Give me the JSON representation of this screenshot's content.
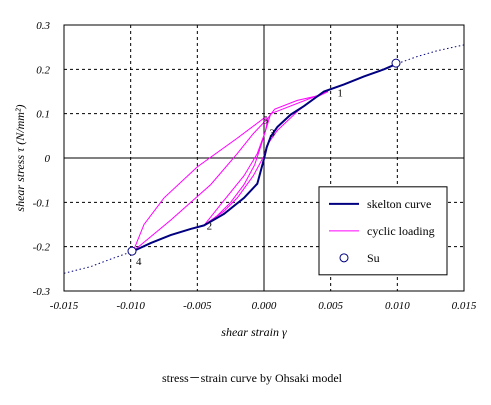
{
  "chart_data": {
    "type": "line",
    "caption": "stress－strain curve by Ohsaki model",
    "xlabel": "shear strain γ",
    "ylabel": "shear stress τ (N/mm²)",
    "xlim": [
      -0.015,
      0.015
    ],
    "ylim": [
      -0.3,
      0.3
    ],
    "x_ticks": [
      -0.015,
      -0.01,
      -0.005,
      0.0,
      0.005,
      0.01,
      0.015
    ],
    "x_tick_labels": [
      "-0.015",
      "-0.010",
      "-0.005",
      "0.000",
      "0.005",
      "0.010",
      "0.015"
    ],
    "y_ticks": [
      -0.3,
      -0.2,
      -0.1,
      0,
      0.1,
      0.2,
      0.3
    ],
    "y_tick_labels": [
      "-0.3",
      "-0.2",
      "-0.1",
      "0",
      "0.1",
      "0.2",
      "0.3"
    ],
    "grid": true,
    "legend_position": "lower-right",
    "colors": {
      "skeleton": "#000080",
      "cyclic": "#ff00ff",
      "extension": "#000080",
      "su_marker": "#000080"
    },
    "legend": [
      {
        "label": "skelton curve",
        "marker": "thick-line"
      },
      {
        "label": "cyclic loading",
        "marker": "thin-line"
      },
      {
        "label": "Su",
        "marker": "circle"
      }
    ],
    "series": [
      {
        "name": "skelton curve",
        "style": "thick",
        "points": [
          [
            -0.0098,
            -0.21
          ],
          [
            -0.0085,
            -0.192
          ],
          [
            -0.007,
            -0.174
          ],
          [
            -0.0055,
            -0.16
          ],
          [
            -0.0045,
            -0.152
          ],
          [
            -0.003,
            -0.126
          ],
          [
            -0.0015,
            -0.09
          ],
          [
            -0.0005,
            -0.058
          ],
          [
            0,
            -0.002
          ],
          [
            0.0002,
            0.024
          ],
          [
            0.0005,
            0.048
          ],
          [
            0.001,
            0.07
          ],
          [
            0.002,
            0.098
          ],
          [
            0.003,
            0.117
          ],
          [
            0.0045,
            0.15
          ],
          [
            0.006,
            0.166
          ],
          [
            0.0075,
            0.184
          ],
          [
            0.009,
            0.2
          ],
          [
            0.01,
            0.213
          ]
        ]
      },
      {
        "name": "cyclic loading",
        "style": "thin",
        "segments": [
          [
            [
              0.0048,
              0.15
            ],
            [
              0.0038,
              0.135
            ],
            [
              0.0025,
              0.105
            ],
            [
              0.001,
              0.062
            ],
            [
              0.0002,
              0.028
            ],
            [
              0,
              0.005
            ],
            [
              -0.0008,
              -0.04
            ],
            [
              -0.002,
              -0.09
            ],
            [
              -0.003,
              -0.12
            ],
            [
              -0.0045,
              -0.152
            ]
          ],
          [
            [
              -0.0045,
              -0.152
            ],
            [
              -0.0035,
              -0.13
            ],
            [
              -0.0025,
              -0.1
            ],
            [
              -0.0015,
              -0.06
            ],
            [
              -0.0007,
              -0.015
            ],
            [
              -0.0002,
              0.03
            ],
            [
              0.0002,
              0.07
            ],
            [
              0.0005,
              0.1
            ],
            [
              0.0048,
              0.15
            ]
          ],
          [
            [
              -0.0045,
              -0.152
            ],
            [
              -0.0032,
              -0.103
            ],
            [
              -0.0015,
              -0.04
            ],
            [
              -0.0005,
              0.01
            ],
            [
              0.0001,
              0.06
            ],
            [
              0.0003,
              0.09
            ]
          ],
          [
            [
              0.0003,
              0.09
            ],
            [
              -0.0008,
              0.055
            ],
            [
              -0.002,
              0.01
            ],
            [
              -0.004,
              -0.06
            ],
            [
              -0.007,
              -0.14
            ],
            [
              -0.0098,
              -0.21
            ]
          ],
          [
            [
              -0.0098,
              -0.21
            ],
            [
              -0.009,
              -0.15
            ],
            [
              -0.0075,
              -0.09
            ],
            [
              -0.005,
              -0.02
            ],
            [
              -0.002,
              0.045
            ],
            [
              0,
              0.09
            ],
            [
              0.0003,
              0.09
            ]
          ],
          [
            [
              0.0003,
              0.09
            ],
            [
              0.0008,
              0.11
            ],
            [
              0.0025,
              0.13
            ],
            [
              0.004,
              0.14
            ],
            [
              0.0048,
              0.15
            ]
          ]
        ]
      },
      {
        "name": "extension",
        "style": "dotted",
        "points": [
          [
            -0.015,
            -0.26
          ],
          [
            -0.013,
            -0.245
          ],
          [
            -0.0115,
            -0.228
          ],
          [
            -0.0098,
            -0.21
          ]
        ],
        "points_upper": [
          [
            0.01,
            0.213
          ],
          [
            0.0115,
            0.229
          ],
          [
            0.013,
            0.242
          ],
          [
            0.015,
            0.255
          ]
        ]
      }
    ],
    "su_points": [
      [
        -0.0099,
        -0.21
      ],
      [
        0.0099,
        0.214
      ]
    ],
    "point_labels": [
      {
        "text": "1",
        "x": 0.0055,
        "y": 0.148
      },
      {
        "text": "2",
        "x": -0.0043,
        "y": -0.152
      },
      {
        "text": "3",
        "x": 0.0004,
        "y": 0.057
      },
      {
        "text": "4",
        "x": -0.0096,
        "y": -0.232
      },
      {
        "text": "5",
        "x": -0.0001,
        "y": 0.087
      }
    ]
  }
}
